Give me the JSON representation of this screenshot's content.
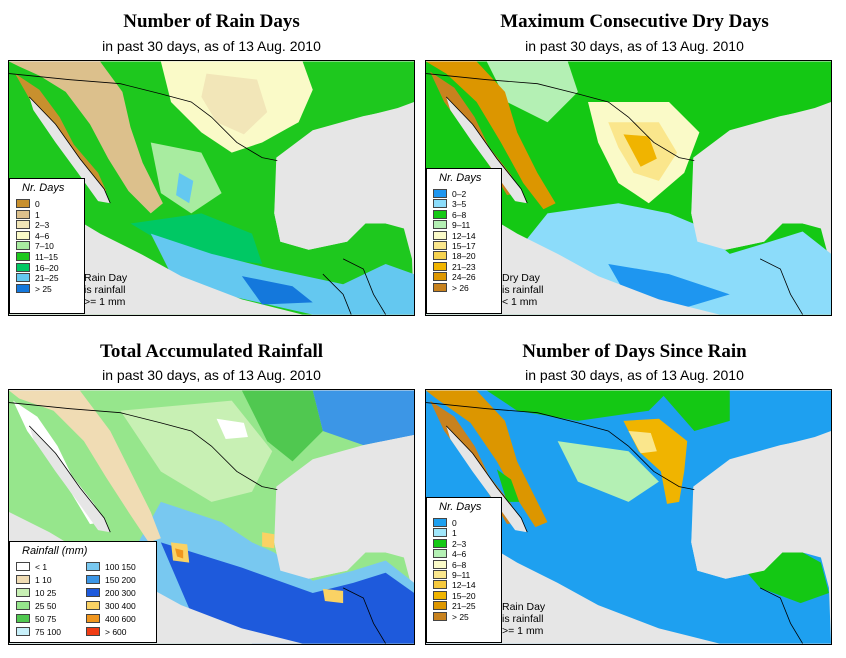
{
  "panels": [
    {
      "title": "Number of Rain Days",
      "subtitle": "in past 30 days, as of  13 Aug. 2010",
      "legend_title": "Nr. Days",
      "legend": [
        {
          "label": "0",
          "color": "#c8902e"
        },
        {
          "label": "1",
          "color": "#dcc08c"
        },
        {
          "label": "2–3",
          "color": "#f2e6b8"
        },
        {
          "label": "4–6",
          "color": "#fafac8"
        },
        {
          "label": "7–10",
          "color": "#a8eca0"
        },
        {
          "label": "11–15",
          "color": "#1ec81e"
        },
        {
          "label": "16–20",
          "color": "#00c864"
        },
        {
          "label": "21–25",
          "color": "#64c8f0"
        },
        {
          "label": "> 25",
          "color": "#1478dc"
        }
      ],
      "note": [
        "Rain Day",
        "is rainfall",
        ">= 1 mm"
      ]
    },
    {
      "title": "Maximum Consecutive Dry Days",
      "subtitle": "in past 30 days, as of  13 Aug. 2010",
      "legend_title": "Nr. Days",
      "legend": [
        {
          "label": "0–2",
          "color": "#1e96f0"
        },
        {
          "label": "3–5",
          "color": "#8cdcfa"
        },
        {
          "label": "6–8",
          "color": "#14c814"
        },
        {
          "label": "9–11",
          "color": "#b4f0b4"
        },
        {
          "label": "12–14",
          "color": "#fafac8"
        },
        {
          "label": "15–17",
          "color": "#fae68c"
        },
        {
          "label": "18–20",
          "color": "#f5d250"
        },
        {
          "label": "21–23",
          "color": "#f0b400"
        },
        {
          "label": "24–26",
          "color": "#dc9600"
        },
        {
          "label": "> 26",
          "color": "#c8821e"
        }
      ],
      "note": [
        "Dry Day",
        "is rainfall",
        "< 1 mm"
      ]
    },
    {
      "title": "Total Accumulated Rainfall",
      "subtitle": "in past 30 days, as of  13 Aug. 2010",
      "legend_title": "Rainfall (mm)",
      "legend": [
        {
          "label": "< 1",
          "color": "#ffffff"
        },
        {
          "label": "1   10",
          "color": "#f0dcb4"
        },
        {
          "label": "10   25",
          "color": "#c8f0b4"
        },
        {
          "label": "25   50",
          "color": "#96e68c"
        },
        {
          "label": "50   75",
          "color": "#50c850"
        },
        {
          "label": "75  100",
          "color": "#c8f0fa"
        },
        {
          "label": "100  150",
          "color": "#78c8f0"
        },
        {
          "label": "150  200",
          "color": "#3c96e6"
        },
        {
          "label": "200  300",
          "color": "#1e5adc"
        },
        {
          "label": "300  400",
          "color": "#fad264"
        },
        {
          "label": "400  600",
          "color": "#f0961e"
        },
        {
          "label": "> 600",
          "color": "#f03c14"
        }
      ],
      "note": []
    },
    {
      "title": "Number of Days Since Rain",
      "subtitle": "in past 30 days, as of  13 Aug. 2010",
      "legend_title": "Nr. Days",
      "legend": [
        {
          "label": "0",
          "color": "#1ea0f0"
        },
        {
          "label": "1",
          "color": "#a0e6fa"
        },
        {
          "label": "2–3",
          "color": "#14c814"
        },
        {
          "label": "4–6",
          "color": "#b4f0b4"
        },
        {
          "label": "6–8",
          "color": "#fafac8"
        },
        {
          "label": "9–11",
          "color": "#fae68c"
        },
        {
          "label": "12–14",
          "color": "#f5c83c"
        },
        {
          "label": "15–20",
          "color": "#f0b400"
        },
        {
          "label": "21–25",
          "color": "#dc9600"
        },
        {
          "label": "> 25",
          "color": "#c8821e"
        }
      ],
      "note": [
        "Rain Day",
        "is rainfall",
        ">= 1 mm"
      ]
    }
  ],
  "colors": {
    "ocean": "#e6e6e6",
    "border": "#000000"
  }
}
